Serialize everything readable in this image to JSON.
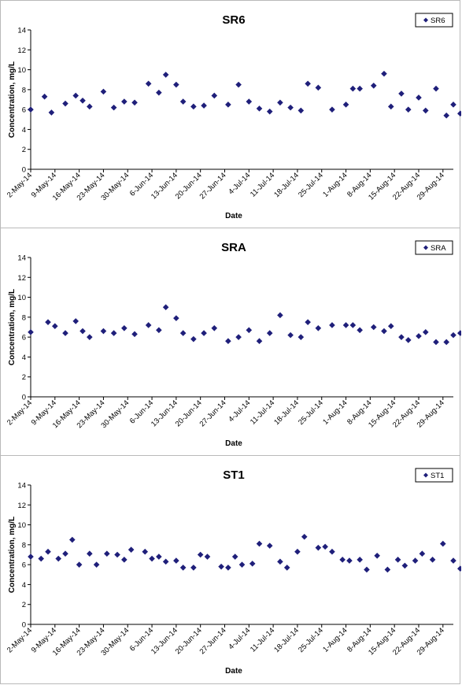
{
  "shared": {
    "xlabel": "Date",
    "ylabel": "Concentration, mg/L",
    "ylim": [
      0,
      14
    ],
    "yticks": [
      0,
      2,
      4,
      6,
      8,
      10,
      12,
      14
    ],
    "xrange": [
      "2014-05-02",
      "2014-09-01"
    ],
    "xticks": [
      "2-May-14",
      "9-May-14",
      "16-May-14",
      "23-May-14",
      "30-May-14",
      "6-Jun-14",
      "13-Jun-14",
      "20-Jun-14",
      "27-Jun-14",
      "4-Jul-14",
      "11-Jul-14",
      "18-Jul-14",
      "25-Jul-14",
      "1-Aug-14",
      "8-Aug-14",
      "15-Aug-14",
      "22-Aug-14",
      "29-Aug-14"
    ],
    "marker_color": "#1f1f7a",
    "marker": "diamond",
    "legend_position": "top-right",
    "grid": false
  },
  "chart_data": [
    {
      "type": "scatter",
      "title": "SR6",
      "series": [
        {
          "name": "SR6",
          "x": [
            "2014-05-02",
            "2014-05-06",
            "2014-05-08",
            "2014-05-12",
            "2014-05-15",
            "2014-05-17",
            "2014-05-19",
            "2014-05-23",
            "2014-05-26",
            "2014-05-29",
            "2014-06-01",
            "2014-06-05",
            "2014-06-08",
            "2014-06-10",
            "2014-06-13",
            "2014-06-15",
            "2014-06-18",
            "2014-06-21",
            "2014-06-24",
            "2014-06-28",
            "2014-07-01",
            "2014-07-04",
            "2014-07-07",
            "2014-07-10",
            "2014-07-13",
            "2014-07-16",
            "2014-07-19",
            "2014-07-21",
            "2014-07-24",
            "2014-07-28",
            "2014-08-01",
            "2014-08-03",
            "2014-08-05",
            "2014-08-09",
            "2014-08-12",
            "2014-08-14",
            "2014-08-17",
            "2014-08-19",
            "2014-08-22",
            "2014-08-24",
            "2014-08-27",
            "2014-08-30",
            "2014-09-01",
            "2014-09-03",
            "2014-09-05",
            "2014-09-07"
          ],
          "y": [
            6.0,
            7.3,
            5.7,
            6.6,
            7.4,
            6.9,
            6.3,
            7.8,
            6.2,
            6.8,
            6.7,
            8.6,
            7.7,
            9.5,
            8.5,
            6.8,
            6.3,
            6.4,
            7.4,
            6.5,
            8.5,
            6.8,
            6.1,
            5.8,
            6.7,
            6.2,
            5.9,
            8.6,
            8.2,
            6.0,
            6.5,
            8.1,
            8.1,
            8.4,
            9.6,
            6.3,
            7.6,
            6.0,
            7.2,
            5.9,
            8.1,
            5.4,
            6.5,
            5.6,
            5.7,
            6.7
          ]
        }
      ]
    },
    {
      "type": "scatter",
      "title": "SRA",
      "series": [
        {
          "name": "SRA",
          "x": [
            "2014-05-02",
            "2014-05-07",
            "2014-05-09",
            "2014-05-12",
            "2014-05-15",
            "2014-05-17",
            "2014-05-19",
            "2014-05-23",
            "2014-05-26",
            "2014-05-29",
            "2014-06-01",
            "2014-06-05",
            "2014-06-08",
            "2014-06-10",
            "2014-06-13",
            "2014-06-15",
            "2014-06-18",
            "2014-06-21",
            "2014-06-24",
            "2014-06-28",
            "2014-07-01",
            "2014-07-04",
            "2014-07-07",
            "2014-07-10",
            "2014-07-13",
            "2014-07-16",
            "2014-07-19",
            "2014-07-21",
            "2014-07-24",
            "2014-07-28",
            "2014-08-01",
            "2014-08-03",
            "2014-08-05",
            "2014-08-09",
            "2014-08-12",
            "2014-08-14",
            "2014-08-17",
            "2014-08-19",
            "2014-08-22",
            "2014-08-24",
            "2014-08-27",
            "2014-08-30",
            "2014-09-01",
            "2014-09-03",
            "2014-09-05",
            "2014-09-07"
          ],
          "y": [
            6.5,
            7.5,
            7.1,
            6.4,
            7.6,
            6.6,
            6.0,
            6.6,
            6.4,
            6.9,
            6.3,
            7.2,
            6.7,
            9.0,
            7.9,
            6.4,
            5.8,
            6.4,
            6.9,
            5.6,
            6.0,
            6.7,
            5.6,
            6.4,
            8.2,
            6.2,
            6.0,
            7.5,
            6.9,
            7.2,
            7.2,
            7.2,
            6.7,
            7.0,
            6.6,
            7.1,
            6.0,
            5.7,
            6.1,
            6.5,
            5.5,
            5.5,
            6.2,
            6.4,
            5.8,
            6.4
          ]
        }
      ]
    },
    {
      "type": "scatter",
      "title": "ST1",
      "series": [
        {
          "name": "ST1",
          "x": [
            "2014-05-02",
            "2014-05-05",
            "2014-05-07",
            "2014-05-10",
            "2014-05-12",
            "2014-05-14",
            "2014-05-16",
            "2014-05-19",
            "2014-05-21",
            "2014-05-24",
            "2014-05-27",
            "2014-05-29",
            "2014-05-31",
            "2014-06-04",
            "2014-06-06",
            "2014-06-08",
            "2014-06-10",
            "2014-06-13",
            "2014-06-15",
            "2014-06-18",
            "2014-06-20",
            "2014-06-22",
            "2014-06-26",
            "2014-06-28",
            "2014-06-30",
            "2014-07-02",
            "2014-07-05",
            "2014-07-07",
            "2014-07-10",
            "2014-07-13",
            "2014-07-15",
            "2014-07-18",
            "2014-07-20",
            "2014-07-24",
            "2014-07-26",
            "2014-07-28",
            "2014-07-31",
            "2014-08-02",
            "2014-08-05",
            "2014-08-07",
            "2014-08-10",
            "2014-08-13",
            "2014-08-16",
            "2014-08-18",
            "2014-08-21",
            "2014-08-23",
            "2014-08-26",
            "2014-08-29",
            "2014-09-01",
            "2014-09-03"
          ],
          "y": [
            6.8,
            6.6,
            7.3,
            6.6,
            7.1,
            8.5,
            6.0,
            7.1,
            6.0,
            7.1,
            7.0,
            6.5,
            7.5,
            7.3,
            6.6,
            6.8,
            6.3,
            6.4,
            5.7,
            5.7,
            7.0,
            6.8,
            5.8,
            5.7,
            6.8,
            6.0,
            6.1,
            8.1,
            7.9,
            6.3,
            5.7,
            7.3,
            8.8,
            7.7,
            7.8,
            7.3,
            6.5,
            6.4,
            6.5,
            5.5,
            6.9,
            5.5,
            6.5,
            5.9,
            6.4,
            7.1,
            6.5,
            8.1,
            6.4,
            5.6
          ]
        }
      ]
    }
  ]
}
